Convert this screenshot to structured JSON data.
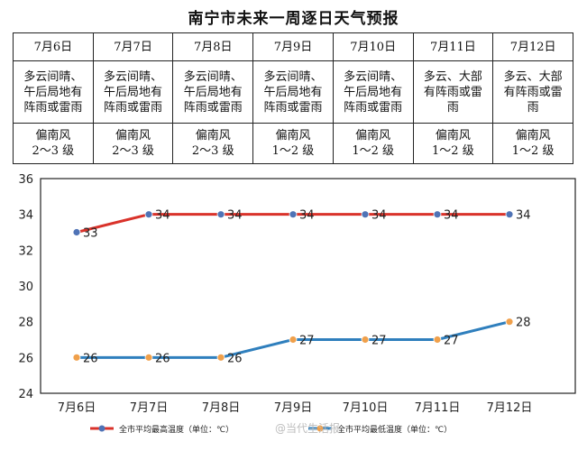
{
  "title": "南宁市未来一周逐日天气预报",
  "forecast": [
    {
      "date": "7月6日",
      "weather": "多云间晴、午后局地有阵雨或雷雨",
      "wind_dir": "偏南风",
      "wind_level": "2～3 级"
    },
    {
      "date": "7月7日",
      "weather": "多云间晴、午后局地有阵雨或雷雨",
      "wind_dir": "偏南风",
      "wind_level": "2～3 级"
    },
    {
      "date": "7月8日",
      "weather": "多云间晴、午后局地有阵雨或雷雨",
      "wind_dir": "偏南风",
      "wind_level": "2～3 级"
    },
    {
      "date": "7月9日",
      "weather": "多云间晴、午后局地有阵雨或雷雨",
      "wind_dir": "偏南风",
      "wind_level": "1～2 级"
    },
    {
      "date": "7月10日",
      "weather": "多云间晴、午后局地有阵雨或雷雨",
      "wind_dir": "偏南风",
      "wind_level": "1～2 级"
    },
    {
      "date": "7月11日",
      "weather": "多云、大部有阵雨或雷雨",
      "wind_dir": "偏南风",
      "wind_level": "1～2 级"
    },
    {
      "date": "7月12日",
      "weather": "多云、大部有阵雨或雷雨",
      "wind_dir": "偏南风",
      "wind_level": "1～2 级"
    }
  ],
  "watermark": "@当代生活报",
  "chart_data": {
    "type": "line",
    "categories": [
      "7月6日",
      "7月7日",
      "7月8日",
      "7月9日",
      "7月10日",
      "7月11日",
      "7月12日"
    ],
    "series": [
      {
        "name": "全市平均最高温度（单位：℃）",
        "values": [
          33,
          34,
          34,
          34,
          34,
          34,
          34
        ],
        "color": "#d9322a",
        "marker_color": "#4f73b6"
      },
      {
        "name": "全市平均最低温度（单位：℃）",
        "values": [
          26,
          26,
          26,
          27,
          27,
          27,
          28
        ],
        "color": "#2f7fbd",
        "marker_color": "#f0a04b"
      }
    ],
    "ylim": [
      24,
      36
    ],
    "yticks": [
      24,
      26,
      28,
      30,
      32,
      34,
      36
    ],
    "grid": false,
    "legend": "bottom",
    "xlabel": "",
    "ylabel": ""
  }
}
